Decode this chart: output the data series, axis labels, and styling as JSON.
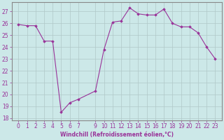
{
  "x": [
    0,
    1,
    2,
    3,
    4,
    5,
    6,
    7,
    9,
    10,
    11,
    12,
    13,
    14,
    15,
    16,
    17,
    18,
    19,
    20,
    21,
    22,
    23
  ],
  "y": [
    25.9,
    25.8,
    25.8,
    24.5,
    24.5,
    18.5,
    19.3,
    19.6,
    20.3,
    23.8,
    26.1,
    26.2,
    27.3,
    26.8,
    26.7,
    26.7,
    27.2,
    26.0,
    25.7,
    25.7,
    25.2,
    24.0,
    23.0
  ],
  "line_color": "#993399",
  "marker": "D",
  "marker_size": 1.8,
  "bg_color": "#cce8e8",
  "grid_color": "#b0c8c8",
  "xlabel": "Windchill (Refroidissement éolien,°C)",
  "ylim": [
    17.8,
    27.8
  ],
  "yticks": [
    18,
    19,
    20,
    21,
    22,
    23,
    24,
    25,
    26,
    27
  ],
  "xticks": [
    0,
    1,
    2,
    3,
    4,
    5,
    6,
    7,
    9,
    10,
    11,
    12,
    13,
    14,
    15,
    16,
    17,
    18,
    19,
    20,
    21,
    22,
    23
  ],
  "tick_color": "#993399",
  "label_color": "#993399",
  "tick_fontsize": 5.5,
  "xlabel_fontsize": 5.5,
  "figsize": [
    3.2,
    2.0
  ],
  "dpi": 100
}
